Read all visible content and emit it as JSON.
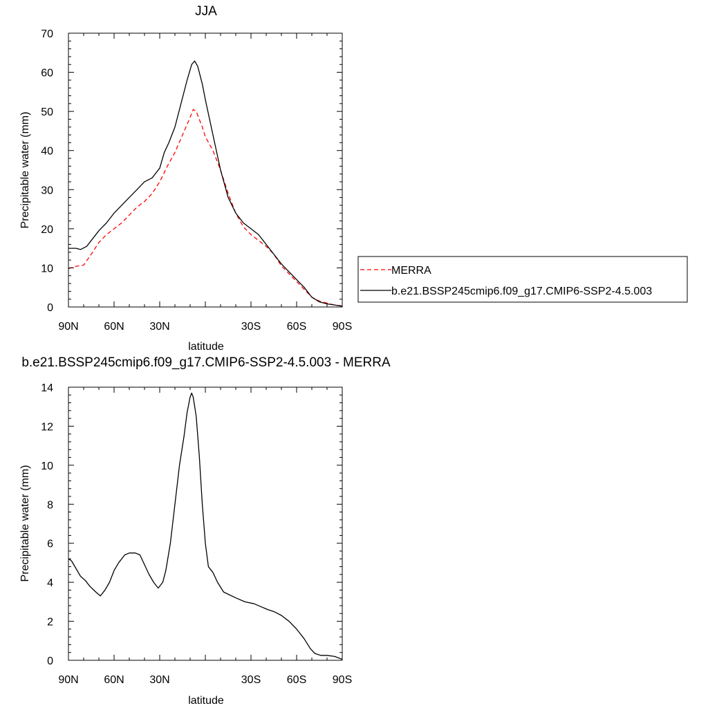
{
  "chart_data": [
    {
      "type": "line",
      "title": "JJA",
      "xlabel": "latitude",
      "ylabel": "Precipitable water (mm)",
      "xlim": [
        90,
        -90
      ],
      "ylim": [
        0,
        70
      ],
      "xticks": [
        90,
        60,
        30,
        0,
        -30,
        -60,
        -90
      ],
      "xtick_labels": [
        "90N",
        "60N",
        "30N",
        "",
        "30S",
        "60S",
        "90S"
      ],
      "yticks": [
        0,
        10,
        20,
        30,
        40,
        50,
        60,
        70
      ],
      "ytick_labels": [
        "0",
        "10",
        "20",
        "30",
        "40",
        "50",
        "60",
        "70"
      ],
      "grid": false,
      "legend_position": "right",
      "series": [
        {
          "name": "MERRA",
          "color": "#ff0000",
          "dash": "dashed",
          "points": [
            [
              90,
              9.8
            ],
            [
              85,
              10.4
            ],
            [
              80,
              10.7
            ],
            [
              75,
              13.5
            ],
            [
              70,
              16.5
            ],
            [
              65,
              18.5
            ],
            [
              60,
              20.0
            ],
            [
              55,
              21.5
            ],
            [
              50,
              23.5
            ],
            [
              45,
              25.5
            ],
            [
              40,
              27.0
            ],
            [
              35,
              29.0
            ],
            [
              30,
              32.0
            ],
            [
              25,
              36.0
            ],
            [
              20,
              39.5
            ],
            [
              15,
              44.0
            ],
            [
              10,
              48.5
            ],
            [
              8,
              50.5
            ],
            [
              6,
              50.0
            ],
            [
              4,
              48.0
            ],
            [
              2,
              46.0
            ],
            [
              0,
              43.5
            ],
            [
              -5,
              40.0
            ],
            [
              -10,
              35.0
            ],
            [
              -15,
              29.0
            ],
            [
              -20,
              24.0
            ],
            [
              -25,
              20.5
            ],
            [
              -30,
              18.5
            ],
            [
              -35,
              17.0
            ],
            [
              -40,
              15.5
            ],
            [
              -45,
              13.5
            ],
            [
              -50,
              10.5
            ],
            [
              -55,
              8.5
            ],
            [
              -60,
              6.5
            ],
            [
              -65,
              4.5
            ],
            [
              -70,
              2.5
            ],
            [
              -75,
              1.5
            ],
            [
              -80,
              1.0
            ],
            [
              -85,
              0.5
            ],
            [
              -90,
              0.3
            ]
          ]
        },
        {
          "name": "b.e21.BSSP245cmip6.f09_g17.CMIP6-SSP2-4.5.003",
          "color": "#000000",
          "dash": "solid",
          "points": [
            [
              90,
              15.0
            ],
            [
              85,
              15.0
            ],
            [
              82,
              14.7
            ],
            [
              78,
              15.5
            ],
            [
              75,
              17.0
            ],
            [
              70,
              19.5
            ],
            [
              65,
              21.5
            ],
            [
              60,
              24.0
            ],
            [
              55,
              26.0
            ],
            [
              50,
              28.0
            ],
            [
              45,
              30.0
            ],
            [
              40,
              32.0
            ],
            [
              35,
              33.0
            ],
            [
              30,
              35.5
            ],
            [
              27,
              39.5
            ],
            [
              24,
              42.0
            ],
            [
              20,
              46.0
            ],
            [
              16,
              52.0
            ],
            [
              12,
              58.0
            ],
            [
              9,
              62.0
            ],
            [
              7,
              62.9
            ],
            [
              5,
              61.5
            ],
            [
              2,
              57.0
            ],
            [
              0,
              53.0
            ],
            [
              -5,
              44.0
            ],
            [
              -10,
              35.0
            ],
            [
              -15,
              28.0
            ],
            [
              -20,
              24.0
            ],
            [
              -25,
              21.5
            ],
            [
              -30,
              20.0
            ],
            [
              -35,
              18.5
            ],
            [
              -40,
              16.0
            ],
            [
              -45,
              13.5
            ],
            [
              -50,
              11.0
            ],
            [
              -55,
              9.0
            ],
            [
              -60,
              7.0
            ],
            [
              -65,
              5.0
            ],
            [
              -70,
              2.5
            ],
            [
              -75,
              1.3
            ],
            [
              -80,
              0.8
            ],
            [
              -85,
              0.5
            ],
            [
              -90,
              0.2
            ]
          ]
        }
      ]
    },
    {
      "type": "line",
      "title": "b.e21.BSSP245cmip6.f09_g17.CMIP6-SSP2-4.5.003 - MERRA",
      "xlabel": "latitude",
      "ylabel": "Precipitable water (mm)",
      "xlim": [
        90,
        -90
      ],
      "ylim": [
        0,
        14
      ],
      "xticks": [
        90,
        60,
        30,
        0,
        -30,
        -60,
        -90
      ],
      "xtick_labels": [
        "90N",
        "60N",
        "30N",
        "",
        "30S",
        "60S",
        "90S"
      ],
      "yticks": [
        0,
        2,
        4,
        6,
        8,
        10,
        12,
        14
      ],
      "ytick_labels": [
        "0",
        "2",
        "4",
        "6",
        "8",
        "10",
        "12",
        "14"
      ],
      "grid": false,
      "series": [
        {
          "color": "#000000",
          "dash": "solid",
          "points": [
            [
              90,
              5.2
            ],
            [
              88,
              5.1
            ],
            [
              85,
              4.7
            ],
            [
              82,
              4.3
            ],
            [
              79,
              4.1
            ],
            [
              76,
              3.8
            ],
            [
              72,
              3.5
            ],
            [
              69,
              3.3
            ],
            [
              66,
              3.6
            ],
            [
              63,
              4.0
            ],
            [
              60,
              4.6
            ],
            [
              57,
              5.0
            ],
            [
              53,
              5.4
            ],
            [
              50,
              5.5
            ],
            [
              46,
              5.5
            ],
            [
              43,
              5.4
            ],
            [
              40,
              4.9
            ],
            [
              37,
              4.4
            ],
            [
              34,
              4.0
            ],
            [
              31,
              3.7
            ],
            [
              28,
              4.0
            ],
            [
              26,
              4.6
            ],
            [
              23,
              6.0
            ],
            [
              20,
              8.0
            ],
            [
              17,
              10.0
            ],
            [
              14,
              11.5
            ],
            [
              12,
              12.7
            ],
            [
              10,
              13.5
            ],
            [
              9,
              13.7
            ],
            [
              8,
              13.5
            ],
            [
              6,
              12.5
            ],
            [
              4,
              10.5
            ],
            [
              2,
              8.0
            ],
            [
              0,
              6.0
            ],
            [
              -2,
              4.8
            ],
            [
              -5,
              4.5
            ],
            [
              -8,
              4.0
            ],
            [
              -12,
              3.5
            ],
            [
              -20,
              3.2
            ],
            [
              -26,
              3.0
            ],
            [
              -32,
              2.9
            ],
            [
              -38,
              2.7
            ],
            [
              -41,
              2.6
            ],
            [
              -45,
              2.5
            ],
            [
              -50,
              2.3
            ],
            [
              -55,
              2.0
            ],
            [
              -60,
              1.6
            ],
            [
              -65,
              1.1
            ],
            [
              -69,
              0.6
            ],
            [
              -72,
              0.35
            ],
            [
              -76,
              0.25
            ],
            [
              -80,
              0.25
            ],
            [
              -85,
              0.2
            ],
            [
              -90,
              0.05
            ]
          ]
        }
      ]
    }
  ],
  "legend": {
    "entries": [
      "MERRA",
      "b.e21.BSSP245cmip6.f09_g17.CMIP6-SSP2-4.5.003"
    ]
  }
}
